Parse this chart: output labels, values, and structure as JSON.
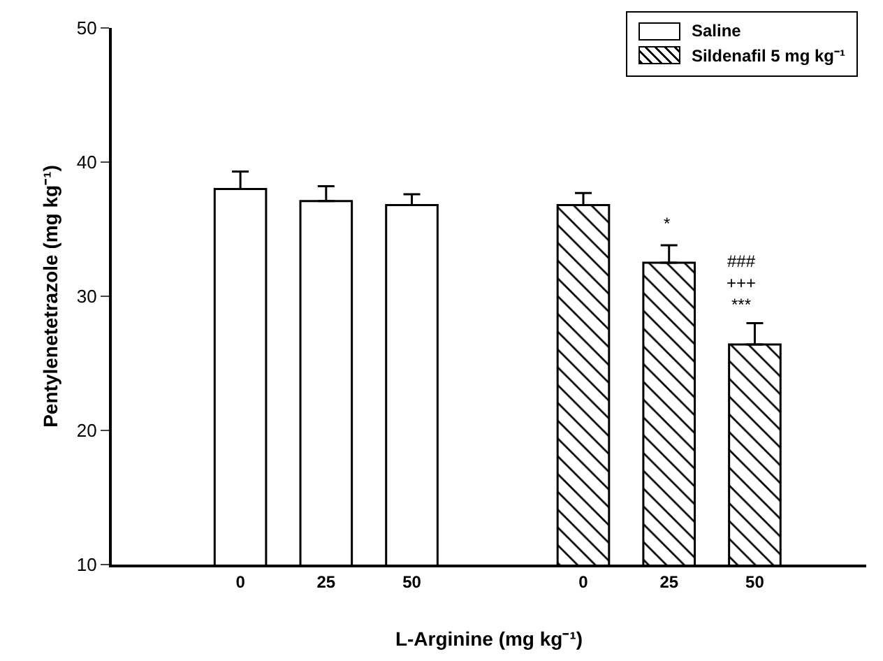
{
  "chart_data": {
    "type": "bar",
    "xlabel": "L-Arginine (mg kg⁻¹)",
    "ylabel": "Pentylenetetrazole (mg kg⁻¹)",
    "categories": [
      "0",
      "25",
      "50",
      null,
      "0",
      "25",
      "50"
    ],
    "series": [
      {
        "name": "Saline",
        "color": "#ffffff",
        "values": [
          38.0,
          37.1,
          36.8,
          null,
          null,
          null,
          null
        ],
        "errors": [
          [
            38.0,
            39.3
          ],
          [
            37.1,
            38.2
          ],
          [
            36.8,
            37.6
          ],
          null,
          null,
          null,
          null
        ]
      },
      {
        "name": "Sildenafil 5 mg kg⁻¹",
        "color": "#000000",
        "values": [
          null,
          null,
          null,
          null,
          36.8,
          32.5,
          26.4
        ],
        "errors": [
          null,
          null,
          null,
          null,
          [
            36.8,
            37.7
          ],
          [
            32.5,
            33.8
          ],
          [
            26.4,
            28.0
          ]
        ]
      }
    ],
    "ylim": [
      10,
      50
    ],
    "yticks": [
      10,
      20,
      30,
      40,
      50
    ],
    "grid": false,
    "legend": "top right",
    "annotations": [
      "*",
      "###\n+++\n***"
    ]
  }
}
